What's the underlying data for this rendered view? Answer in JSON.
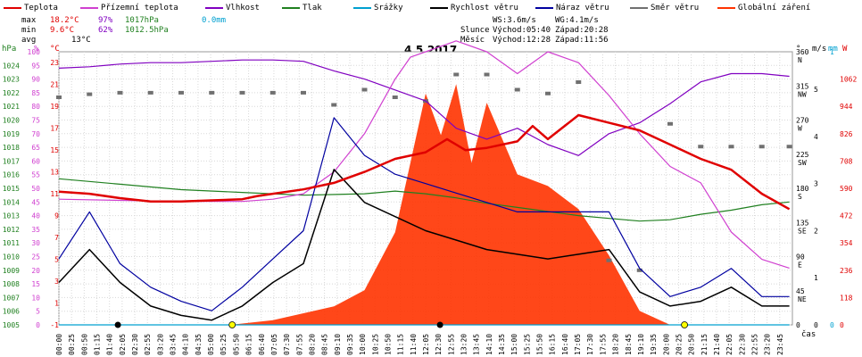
{
  "legend": [
    {
      "label": "Teplota",
      "color": "#e00000"
    },
    {
      "label": "Přízemní teplota",
      "color": "#d040d0"
    },
    {
      "label": "Vlhkost",
      "color": "#8000c0"
    },
    {
      "label": "Tlak",
      "color": "#208020"
    },
    {
      "label": "Srážky",
      "color": "#00a0d0"
    },
    {
      "label": "Rychlost větru",
      "color": "#000000"
    },
    {
      "label": "Náraz větru",
      "color": "#0000a0"
    },
    {
      "label": "Směr větru",
      "color": "#707070"
    },
    {
      "label": "Globální záření",
      "color": "#ff3300"
    }
  ],
  "stats": {
    "max": {
      "label": "max",
      "temp": "18.2°C",
      "hum": "97%",
      "press": "1017hPa",
      "rain": "0.0mm"
    },
    "min": {
      "label": "min",
      "temp": "9.6°C",
      "hum": "62%",
      "press": "1012.5hPa"
    },
    "avg": {
      "label": "avg",
      "temp": "13°C"
    }
  },
  "wind": {
    "ws": "WS:3.6m/s",
    "wg": "WG:4.1m/s"
  },
  "sun": {
    "label": "Slunce",
    "rise": "Východ:05:40",
    "set": "Západ:20:28"
  },
  "moon": {
    "label": "Měsíc",
    "rise": "Východ:12:28",
    "set": "Západ:11:56"
  },
  "date": "4.5.2017",
  "units": {
    "hpa": "hPa",
    "pct": "%",
    "degc": "°C",
    "deg": "°",
    "ms": "m/s",
    "mm": "mm",
    "w": "W",
    "time": "čas"
  },
  "chart_data": {
    "type": "line",
    "title": "4.5.2017",
    "x_ticks": [
      "00:00",
      "00:25",
      "00:50",
      "01:15",
      "01:40",
      "02:05",
      "02:30",
      "02:55",
      "03:20",
      "03:45",
      "04:10",
      "04:35",
      "05:00",
      "05:25",
      "05:50",
      "06:15",
      "06:40",
      "07:05",
      "07:30",
      "07:55",
      "08:20",
      "08:45",
      "09:10",
      "09:35",
      "10:00",
      "10:25",
      "10:50",
      "11:15",
      "11:40",
      "12:05",
      "12:30",
      "12:55",
      "13:20",
      "13:45",
      "14:10",
      "14:35",
      "15:00",
      "15:25",
      "15:50",
      "16:15",
      "16:40",
      "17:05",
      "17:30",
      "17:55",
      "18:20",
      "18:45",
      "19:10",
      "19:35",
      "20:00",
      "20:25",
      "20:50",
      "21:15",
      "21:40",
      "22:05",
      "22:30",
      "22:55",
      "23:20",
      "23:45"
    ],
    "axes": {
      "pressure_hpa": {
        "ticks": [
          1005,
          1006,
          1007,
          1008,
          1009,
          1010,
          1011,
          1012,
          1013,
          1014,
          1015,
          1016,
          1017,
          1018,
          1019,
          1020,
          1021,
          1022,
          1023,
          1024
        ],
        "range": [
          1005,
          1025
        ]
      },
      "humidity_pct": {
        "ticks": [
          0,
          5,
          10,
          15,
          20,
          25,
          30,
          35,
          40,
          45,
          50,
          55,
          60,
          65,
          70,
          75,
          80,
          85,
          90,
          95,
          100
        ],
        "range": [
          0,
          100
        ]
      },
      "temperature_c": {
        "ticks": [
          -1,
          1,
          3,
          5,
          7,
          9,
          11,
          13,
          15,
          17,
          19,
          21,
          23
        ],
        "range": [
          -1,
          24
        ]
      },
      "direction_deg": {
        "ticks": [
          "0",
          "45 NE",
          "90 E",
          "135 SE",
          "180 S",
          "225 SW",
          "270 W",
          "315 NW",
          "360 N"
        ],
        "range": [
          0,
          360
        ]
      },
      "wind_ms": {
        "ticks": [
          0,
          1,
          2,
          3,
          4,
          5
        ],
        "range": [
          0,
          5.8
        ]
      },
      "rain_mm": {
        "ticks": [
          0,
          1
        ],
        "range": [
          0,
          1
        ]
      },
      "radiation_w": {
        "ticks": [
          0,
          118,
          236,
          354,
          472,
          590,
          708,
          826,
          944,
          1062
        ],
        "range": [
          0,
          1180
        ]
      }
    },
    "series": [
      {
        "name": "Teplota",
        "unit": "°C",
        "points": [
          [
            0,
            11.2
          ],
          [
            1,
            11.0
          ],
          [
            2,
            10.6
          ],
          [
            3,
            10.3
          ],
          [
            4,
            10.3
          ],
          [
            5,
            10.4
          ],
          [
            6,
            10.5
          ],
          [
            6.5,
            10.8
          ],
          [
            7,
            11.0
          ],
          [
            8,
            11.4
          ],
          [
            9,
            12.0
          ],
          [
            10,
            13.0
          ],
          [
            11,
            14.2
          ],
          [
            12,
            14.8
          ],
          [
            12.7,
            16.0
          ],
          [
            13.3,
            15.0
          ],
          [
            14,
            15.2
          ],
          [
            15,
            15.8
          ],
          [
            15.5,
            17.2
          ],
          [
            16,
            16.0
          ],
          [
            17,
            18.2
          ],
          [
            18,
            17.5
          ],
          [
            19,
            16.8
          ],
          [
            20,
            15.5
          ],
          [
            21,
            14.2
          ],
          [
            22,
            13.2
          ],
          [
            23,
            11.0
          ],
          [
            23.9,
            9.6
          ]
        ]
      },
      {
        "name": "Přízemní teplota",
        "unit": "°C",
        "points": [
          [
            0,
            10.5
          ],
          [
            2,
            10.4
          ],
          [
            4,
            10.3
          ],
          [
            6,
            10.3
          ],
          [
            7,
            10.5
          ],
          [
            8,
            11.0
          ],
          [
            9,
            13.0
          ],
          [
            10,
            16.5
          ],
          [
            11,
            21.5
          ],
          [
            11.5,
            23.5
          ],
          [
            12,
            24
          ],
          [
            13,
            25
          ],
          [
            14,
            24
          ],
          [
            15,
            22
          ],
          [
            16,
            24
          ],
          [
            17,
            23
          ],
          [
            18,
            20
          ],
          [
            19,
            16.5
          ],
          [
            20,
            13.5
          ],
          [
            21,
            12.0
          ],
          [
            22,
            7.5
          ],
          [
            23,
            5.0
          ],
          [
            23.9,
            4.2
          ]
        ]
      },
      {
        "name": "Vlhkost",
        "unit": "%",
        "points": [
          [
            0,
            94
          ],
          [
            1,
            94.5
          ],
          [
            2,
            95.5
          ],
          [
            3,
            96
          ],
          [
            4,
            96
          ],
          [
            5,
            96.5
          ],
          [
            6,
            97
          ],
          [
            7,
            97
          ],
          [
            8,
            96.5
          ],
          [
            9,
            93
          ],
          [
            10,
            90
          ],
          [
            11,
            86
          ],
          [
            12,
            82
          ],
          [
            13,
            72
          ],
          [
            14,
            68
          ],
          [
            15,
            72
          ],
          [
            16,
            66
          ],
          [
            17,
            62
          ],
          [
            18,
            70
          ],
          [
            19,
            74
          ],
          [
            20,
            81
          ],
          [
            21,
            89
          ],
          [
            22,
            92
          ],
          [
            23,
            92
          ],
          [
            23.9,
            91
          ]
        ]
      },
      {
        "name": "Tlak",
        "unit": "hPa",
        "points": [
          [
            0,
            1015.7
          ],
          [
            2,
            1015.3
          ],
          [
            4,
            1014.9
          ],
          [
            6,
            1014.7
          ],
          [
            8,
            1014.5
          ],
          [
            10,
            1014.6
          ],
          [
            11,
            1014.8
          ],
          [
            12,
            1014.6
          ],
          [
            13,
            1014.3
          ],
          [
            14,
            1013.9
          ],
          [
            15,
            1013.6
          ],
          [
            16,
            1013.3
          ],
          [
            17,
            1013.0
          ],
          [
            18,
            1012.8
          ],
          [
            19,
            1012.6
          ],
          [
            20,
            1012.7
          ],
          [
            21,
            1013.1
          ],
          [
            22,
            1013.4
          ],
          [
            23,
            1013.8
          ],
          [
            23.9,
            1014.0
          ]
        ]
      },
      {
        "name": "Rychlost větru",
        "unit": "m/s",
        "points": [
          [
            0,
            0.9
          ],
          [
            1,
            1.6
          ],
          [
            2,
            0.9
          ],
          [
            3,
            0.4
          ],
          [
            4,
            0.2
          ],
          [
            5,
            0.1
          ],
          [
            6,
            0.4
          ],
          [
            7,
            0.9
          ],
          [
            8,
            1.3
          ],
          [
            9,
            3.3
          ],
          [
            10,
            2.6
          ],
          [
            11,
            2.3
          ],
          [
            12,
            2.0
          ],
          [
            13,
            1.8
          ],
          [
            14,
            1.6
          ],
          [
            15,
            1.5
          ],
          [
            16,
            1.4
          ],
          [
            17,
            1.5
          ],
          [
            18,
            1.6
          ],
          [
            19,
            0.7
          ],
          [
            20,
            0.4
          ],
          [
            21,
            0.5
          ],
          [
            22,
            0.8
          ],
          [
            23,
            0.4
          ],
          [
            23.9,
            0.4
          ]
        ]
      },
      {
        "name": "Náraz větru",
        "unit": "m/s",
        "points": [
          [
            0,
            1.4
          ],
          [
            1,
            2.4
          ],
          [
            2,
            1.3
          ],
          [
            3,
            0.8
          ],
          [
            4,
            0.5
          ],
          [
            5,
            0.3
          ],
          [
            6,
            0.8
          ],
          [
            7,
            1.4
          ],
          [
            8,
            2.0
          ],
          [
            9,
            4.4
          ],
          [
            10,
            3.6
          ],
          [
            11,
            3.2
          ],
          [
            12,
            3.0
          ],
          [
            13,
            2.8
          ],
          [
            14,
            2.6
          ],
          [
            15,
            2.4
          ],
          [
            16,
            2.4
          ],
          [
            17,
            2.4
          ],
          [
            18,
            2.4
          ],
          [
            19,
            1.2
          ],
          [
            20,
            0.6
          ],
          [
            21,
            0.8
          ],
          [
            22,
            1.2
          ],
          [
            23,
            0.6
          ],
          [
            23.9,
            0.6
          ]
        ]
      },
      {
        "name": "Směr větru",
        "unit": "°",
        "points": [
          [
            0,
            300
          ],
          [
            1,
            304
          ],
          [
            2,
            306
          ],
          [
            3,
            306
          ],
          [
            4,
            306
          ],
          [
            5,
            306
          ],
          [
            6,
            306
          ],
          [
            7,
            306
          ],
          [
            8,
            306
          ],
          [
            9,
            290
          ],
          [
            10,
            310
          ],
          [
            11,
            300
          ],
          [
            12,
            295
          ],
          [
            13,
            330
          ],
          [
            14,
            330
          ],
          [
            15,
            310
          ],
          [
            16,
            305
          ],
          [
            17,
            320
          ],
          [
            18,
            85
          ],
          [
            19,
            72
          ],
          [
            20,
            265
          ],
          [
            21,
            235
          ],
          [
            22,
            235
          ],
          [
            23,
            235
          ],
          [
            23.9,
            235
          ]
        ]
      },
      {
        "name": "Globální záření",
        "unit": "W",
        "points": [
          [
            5.6,
            0
          ],
          [
            7,
            20
          ],
          [
            9,
            80
          ],
          [
            10,
            150
          ],
          [
            11,
            400
          ],
          [
            12,
            1000
          ],
          [
            12.5,
            820
          ],
          [
            13,
            1040
          ],
          [
            13.5,
            700
          ],
          [
            14,
            960
          ],
          [
            15,
            650
          ],
          [
            16,
            600
          ],
          [
            17,
            500
          ],
          [
            18,
            300
          ],
          [
            19,
            60
          ],
          [
            20,
            0
          ]
        ]
      },
      {
        "name": "Srážky",
        "unit": "mm",
        "points": [
          [
            0,
            0
          ],
          [
            23.9,
            0
          ]
        ]
      }
    ]
  }
}
